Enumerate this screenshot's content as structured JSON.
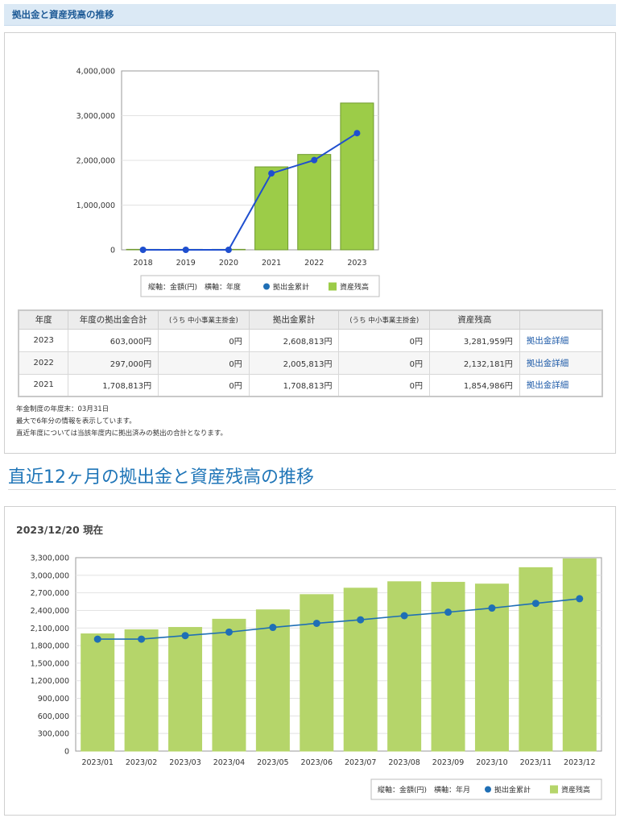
{
  "header": {
    "title": "拠出金と資産残高の推移"
  },
  "yearly_chart": {
    "chart_data": {
      "type": "bar",
      "categories": [
        "2018",
        "2019",
        "2020",
        "2021",
        "2022",
        "2023"
      ],
      "series": [
        {
          "name": "資産残高",
          "kind": "bar",
          "color": "#9ccc48",
          "values": [
            0,
            0,
            0,
            1854986,
            2132181,
            3281959
          ]
        },
        {
          "name": "拠出金累計",
          "kind": "line",
          "color": "#1f4fcf",
          "values": [
            0,
            0,
            0,
            1708813,
            2005813,
            2608813
          ]
        }
      ],
      "y_ticks": [
        "4,000,000",
        "3,000,000",
        "2,000,000",
        "1,000,000",
        "0"
      ],
      "ylim": [
        0,
        4000000
      ]
    },
    "legend": {
      "axis_note": "縦軸：金額(円)　横軸：年度",
      "line_label": "拠出金累計",
      "bar_label": "資産残高"
    }
  },
  "table": {
    "headers": [
      "年度",
      "年度の拠出金合計",
      "(うち 中小事業主掛金)",
      "拠出金累計",
      "(うち 中小事業主掛金)",
      "資産残高",
      ""
    ],
    "rows": [
      {
        "year": "2023",
        "annual": "603,000円",
        "employer1": "0円",
        "cumulative": "2,608,813円",
        "employer2": "0円",
        "balance": "3,281,959円",
        "link": "拠出金詳細"
      },
      {
        "year": "2022",
        "annual": "297,000円",
        "employer1": "0円",
        "cumulative": "2,005,813円",
        "employer2": "0円",
        "balance": "2,132,181円",
        "link": "拠出金詳細"
      },
      {
        "year": "2021",
        "annual": "1,708,813円",
        "employer1": "0円",
        "cumulative": "1,708,813円",
        "employer2": "0円",
        "balance": "1,854,986円",
        "link": "拠出金詳細"
      }
    ]
  },
  "notes": [
    "年金制度の年度末：03月31日",
    "最大で6年分の情報を表示しています。",
    "直近年度については当該年度内に拠出済みの拠出の合計となります。"
  ],
  "monthly_section": {
    "title": "直近12ヶ月の拠出金と資産残高の推移",
    "as_of": "2023/12/20 現在",
    "chart_data": {
      "type": "bar",
      "categories": [
        "2023/01",
        "2023/02",
        "2023/03",
        "2023/04",
        "2023/05",
        "2023/06",
        "2023/07",
        "2023/08",
        "2023/09",
        "2023/10",
        "2023/11",
        "2023/12"
      ],
      "series": [
        {
          "name": "資産残高",
          "kind": "bar",
          "color": "#b5d56a",
          "values": [
            2000000,
            2070000,
            2110000,
            2250000,
            2410000,
            2670000,
            2780000,
            2890000,
            2880000,
            2850000,
            3130000,
            3280000
          ]
        },
        {
          "name": "拠出金累計",
          "kind": "line",
          "color": "#1f6fb5",
          "values": [
            1910000,
            1910000,
            1970000,
            2030000,
            2110000,
            2180000,
            2240000,
            2310000,
            2370000,
            2440000,
            2520000,
            2600000
          ]
        }
      ],
      "y_ticks": [
        "3,300,000",
        "3,000,000",
        "2,700,000",
        "2,400,000",
        "2,100,000",
        "1,800,000",
        "1,500,000",
        "1,200,000",
        "900,000",
        "600,000",
        "300,000",
        "0"
      ],
      "ylim": [
        0,
        3300000
      ]
    },
    "legend": {
      "axis_note": "縦軸：金額(円)　横軸：年月",
      "line_label": "拠出金累計",
      "bar_label": "資産残高"
    }
  }
}
